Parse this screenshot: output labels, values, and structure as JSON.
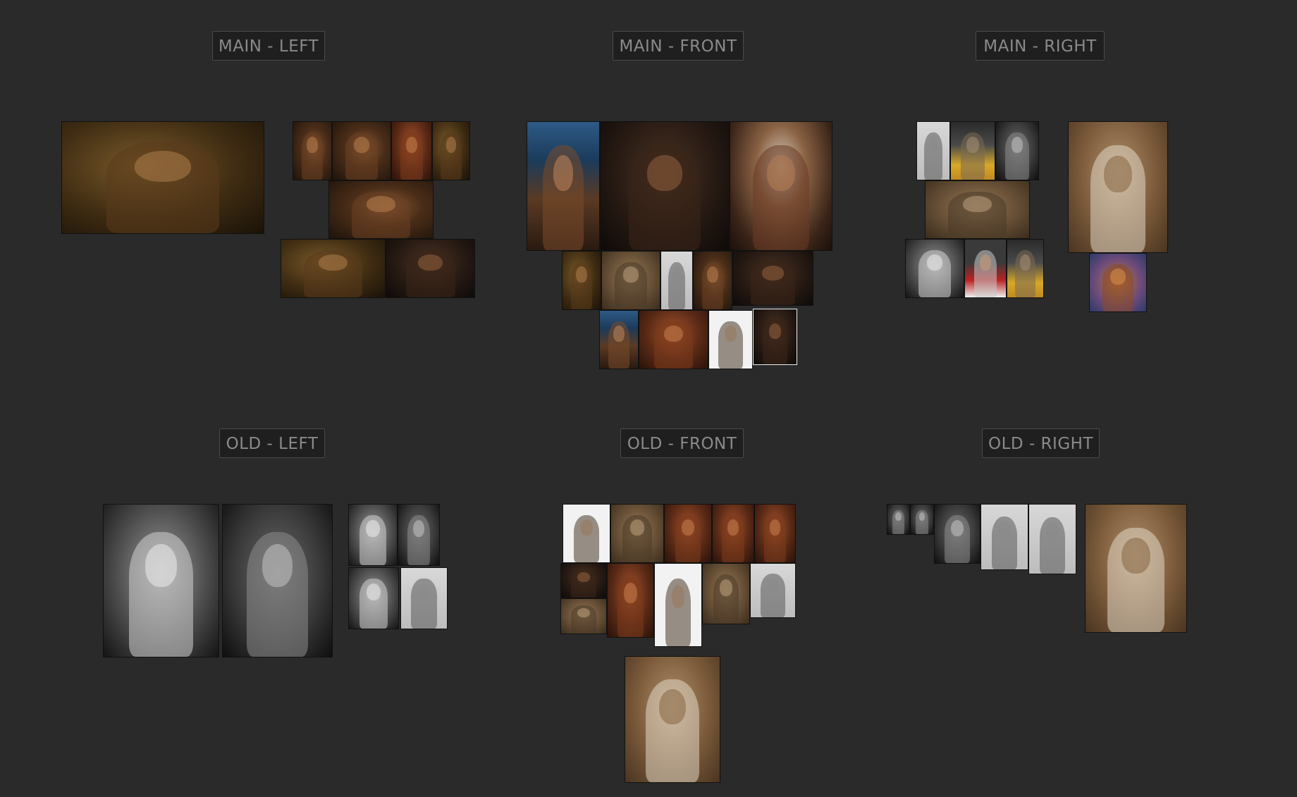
{
  "groups": {
    "main_left": {
      "label": "MAIN - LEFT"
    },
    "main_front": {
      "label": "MAIN - FRONT"
    },
    "main_right": {
      "label": "MAIN - RIGHT"
    },
    "old_left": {
      "label": "OLD - LEFT"
    },
    "old_front": {
      "label": "OLD - FRONT"
    },
    "old_right": {
      "label": "OLD - RIGHT"
    }
  },
  "colors": {
    "canvas_background": "#2a2a2a",
    "label_background": "#1f1f1f",
    "label_border": "#4a4a4a",
    "label_text": "#8a8a8a"
  }
}
